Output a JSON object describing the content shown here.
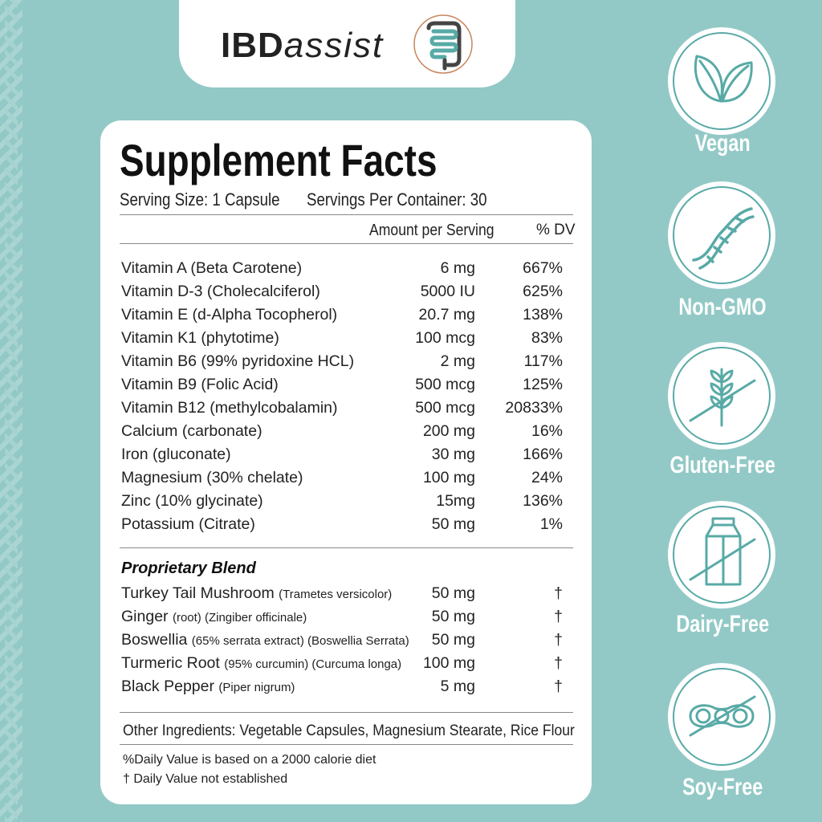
{
  "brand": {
    "name_bold": "IBD",
    "name_italic": "assist"
  },
  "facts": {
    "title": "Supplement Facts",
    "serving_size": "Serving Size: 1 Capsule",
    "servings_per_container": "Servings Per Container: 30",
    "col_amount": "Amount per Serving",
    "col_dv": "% DV",
    "nutrients": [
      {
        "name": "Vitamin A (Beta Carotene)",
        "amount": "6 mg",
        "dv": "667%"
      },
      {
        "name": "Vitamin D-3 (Cholecalciferol)",
        "amount": "5000 IU",
        "dv": "625%"
      },
      {
        "name": "Vitamin E (d-Alpha Tocopherol)",
        "amount": "20.7 mg",
        "dv": "138%"
      },
      {
        "name": "Vitamin K1 (phytotime)",
        "amount": "100 mcg",
        "dv": "83%"
      },
      {
        "name": "Vitamin B6 (99% pyridoxine HCL)",
        "amount": "2 mg",
        "dv": "117%"
      },
      {
        "name": "Vitamin B9 (Folic Acid)",
        "amount": "500 mcg",
        "dv": "125%"
      },
      {
        "name": "Vitamin B12 (methylcobalamin)",
        "amount": "500 mcg",
        "dv": "20833%"
      },
      {
        "name": "Calcium (carbonate)",
        "amount": "200 mg",
        "dv": "16%"
      },
      {
        "name": "Iron (gluconate)",
        "amount": "30 mg",
        "dv": "166%"
      },
      {
        "name": "Magnesium (30% chelate)",
        "amount": "100 mg",
        "dv": "24%"
      },
      {
        "name": "Zinc (10% glycinate)",
        "amount": "15mg",
        "dv": "136%"
      },
      {
        "name": "Potassium (Citrate)",
        "amount": "50 mg",
        "dv": "1%"
      }
    ],
    "blend_title": "Proprietary Blend",
    "blend": [
      {
        "name": "Turkey Tail Mushroom",
        "detail": "(Trametes versicolor)",
        "amount": "50 mg",
        "dv": "†"
      },
      {
        "name": "Ginger",
        "detail": "(root)  (Zingiber officinale)",
        "amount": "50 mg",
        "dv": "†"
      },
      {
        "name": "Boswellia",
        "detail": "(65% serrata extract)  (Boswellia Serrata)",
        "amount": "50 mg",
        "dv": "†"
      },
      {
        "name": "Turmeric Root",
        "detail": "(95% curcumin) (Curcuma longa)",
        "amount": "100 mg",
        "dv": "†"
      },
      {
        "name": "Black Pepper",
        "detail": "(Piper nigrum)",
        "amount": "5 mg",
        "dv": "†"
      }
    ],
    "other_ingredients": "Other Ingredients:  Vegetable Capsules, Magnesium Stearate, Rice Flour",
    "note_dv": "%Daily Value is based on a 2000 calorie diet",
    "note_dagger": "† Daily Value not established"
  },
  "badges": [
    {
      "label": "Vegan",
      "icon": "leaf-icon"
    },
    {
      "label": "Non-GMO",
      "icon": "dna-icon"
    },
    {
      "label": "Gluten-Free",
      "icon": "wheat-crossed-icon"
    },
    {
      "label": "Dairy-Free",
      "icon": "milk-carton-crossed-icon"
    },
    {
      "label": "Soy-Free",
      "icon": "soybean-crossed-icon"
    }
  ],
  "colors": {
    "background": "#92c9c6",
    "accent": "#58aaa6",
    "text": "#222222"
  }
}
